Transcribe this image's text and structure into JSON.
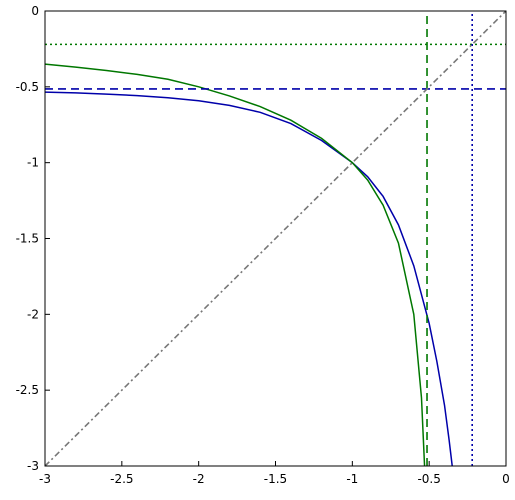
{
  "chart_data": {
    "type": "line",
    "title": "",
    "xlabel": "",
    "ylabel": "",
    "xlim": [
      -3.0,
      0.0
    ],
    "ylim": [
      -3.0,
      0.0
    ],
    "x_ticks": [
      -3,
      -2.5,
      -2,
      -1.5,
      -1,
      -0.5,
      0
    ],
    "x_tick_labels": [
      "-3",
      "-2.5",
      "-2",
      "-1.5",
      "-1",
      "-0.5",
      "0"
    ],
    "y_ticks": [
      0,
      -0.5,
      -1,
      -1.5,
      -2,
      -2.5,
      -3
    ],
    "y_tick_labels": [
      "0",
      "-0.5",
      "-1",
      "-1.5",
      "-2",
      "-2.5",
      "-3"
    ],
    "grid": false,
    "legend": "none",
    "series": [
      {
        "color": "#0000aa",
        "style": "solid",
        "x": [
          -3.0,
          -2.8,
          -2.6,
          -2.4,
          -2.2,
          -2.0,
          -1.8,
          -1.6,
          -1.4,
          -1.2,
          -1.0,
          -0.9,
          -0.8,
          -0.7,
          -0.6,
          -0.5,
          -0.45,
          -0.4,
          -0.37,
          -0.35
        ],
        "y": [
          -0.535,
          -0.54,
          -0.548,
          -0.558,
          -0.572,
          -0.592,
          -0.622,
          -0.668,
          -0.742,
          -0.854,
          -1.0,
          -1.093,
          -1.222,
          -1.41,
          -1.68,
          -2.06,
          -2.31,
          -2.6,
          -2.83,
          -3.0
        ]
      },
      {
        "color": "#007700",
        "style": "solid",
        "x": [
          -3.0,
          -2.8,
          -2.6,
          -2.4,
          -2.2,
          -2.0,
          -1.8,
          -1.6,
          -1.4,
          -1.2,
          -1.0,
          -0.9,
          -0.8,
          -0.7,
          -0.6,
          -0.55,
          -0.53
        ],
        "y": [
          -0.35,
          -0.37,
          -0.392,
          -0.418,
          -0.45,
          -0.5,
          -0.56,
          -0.63,
          -0.72,
          -0.84,
          -1.0,
          -1.115,
          -1.28,
          -1.53,
          -2.0,
          -2.55,
          -3.0
        ]
      },
      {
        "color": "#0000aa",
        "style": "dashed",
        "x": [
          -3.0,
          0.0
        ],
        "y": [
          -0.514,
          -0.514
        ]
      },
      {
        "color": "#007700",
        "style": "dashed",
        "x": [
          -0.514,
          -0.514
        ],
        "y": [
          -3.0,
          0.0
        ]
      },
      {
        "color": "#007700",
        "style": "dotted",
        "x": [
          -3.0,
          0.0
        ],
        "y": [
          -0.22,
          -0.22
        ]
      },
      {
        "color": "#0000aa",
        "style": "dotted",
        "x": [
          -0.22,
          -0.22
        ],
        "y": [
          -3.0,
          0.0
        ]
      },
      {
        "color": "#777777",
        "style": "dashdot",
        "x": [
          -3.0,
          0.0
        ],
        "y": [
          -3.0,
          0.0
        ]
      }
    ]
  }
}
